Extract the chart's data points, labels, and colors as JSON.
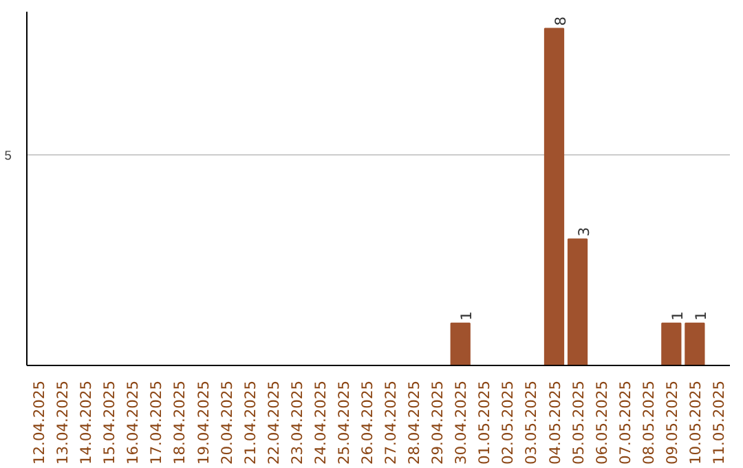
{
  "chart_data": {
    "type": "bar",
    "categories": [
      "12.04.2025",
      "13.04.2025",
      "14.04.2025",
      "15.04.2025",
      "16.04.2025",
      "17.04.2025",
      "18.04.2025",
      "19.04.2025",
      "20.04.2025",
      "21.04.2025",
      "22.04.2025",
      "23.04.2025",
      "24.04.2025",
      "25.04.2025",
      "26.04.2025",
      "27.04.2025",
      "28.04.2025",
      "29.04.2025",
      "30.04.2025",
      "01.05.2025",
      "02.05.2025",
      "03.05.2025",
      "04.05.2025",
      "05.05.2025",
      "06.05.2025",
      "07.05.2025",
      "08.05.2025",
      "09.05.2025",
      "10.05.2025",
      "11.05.2025"
    ],
    "values": [
      null,
      null,
      null,
      null,
      null,
      null,
      null,
      null,
      null,
      null,
      null,
      null,
      null,
      null,
      null,
      null,
      null,
      null,
      1,
      null,
      null,
      null,
      8,
      3,
      null,
      null,
      null,
      1,
      1,
      null
    ],
    "value_labels": [
      null,
      null,
      null,
      null,
      null,
      null,
      null,
      null,
      null,
      null,
      null,
      null,
      null,
      null,
      null,
      null,
      null,
      null,
      "1",
      null,
      null,
      null,
      "8",
      "3",
      null,
      null,
      null,
      "1",
      "1",
      null
    ],
    "color": "#a0522d",
    "ylim": [
      0,
      8.4
    ],
    "yticks": [
      5
    ],
    "grid": "y"
  }
}
